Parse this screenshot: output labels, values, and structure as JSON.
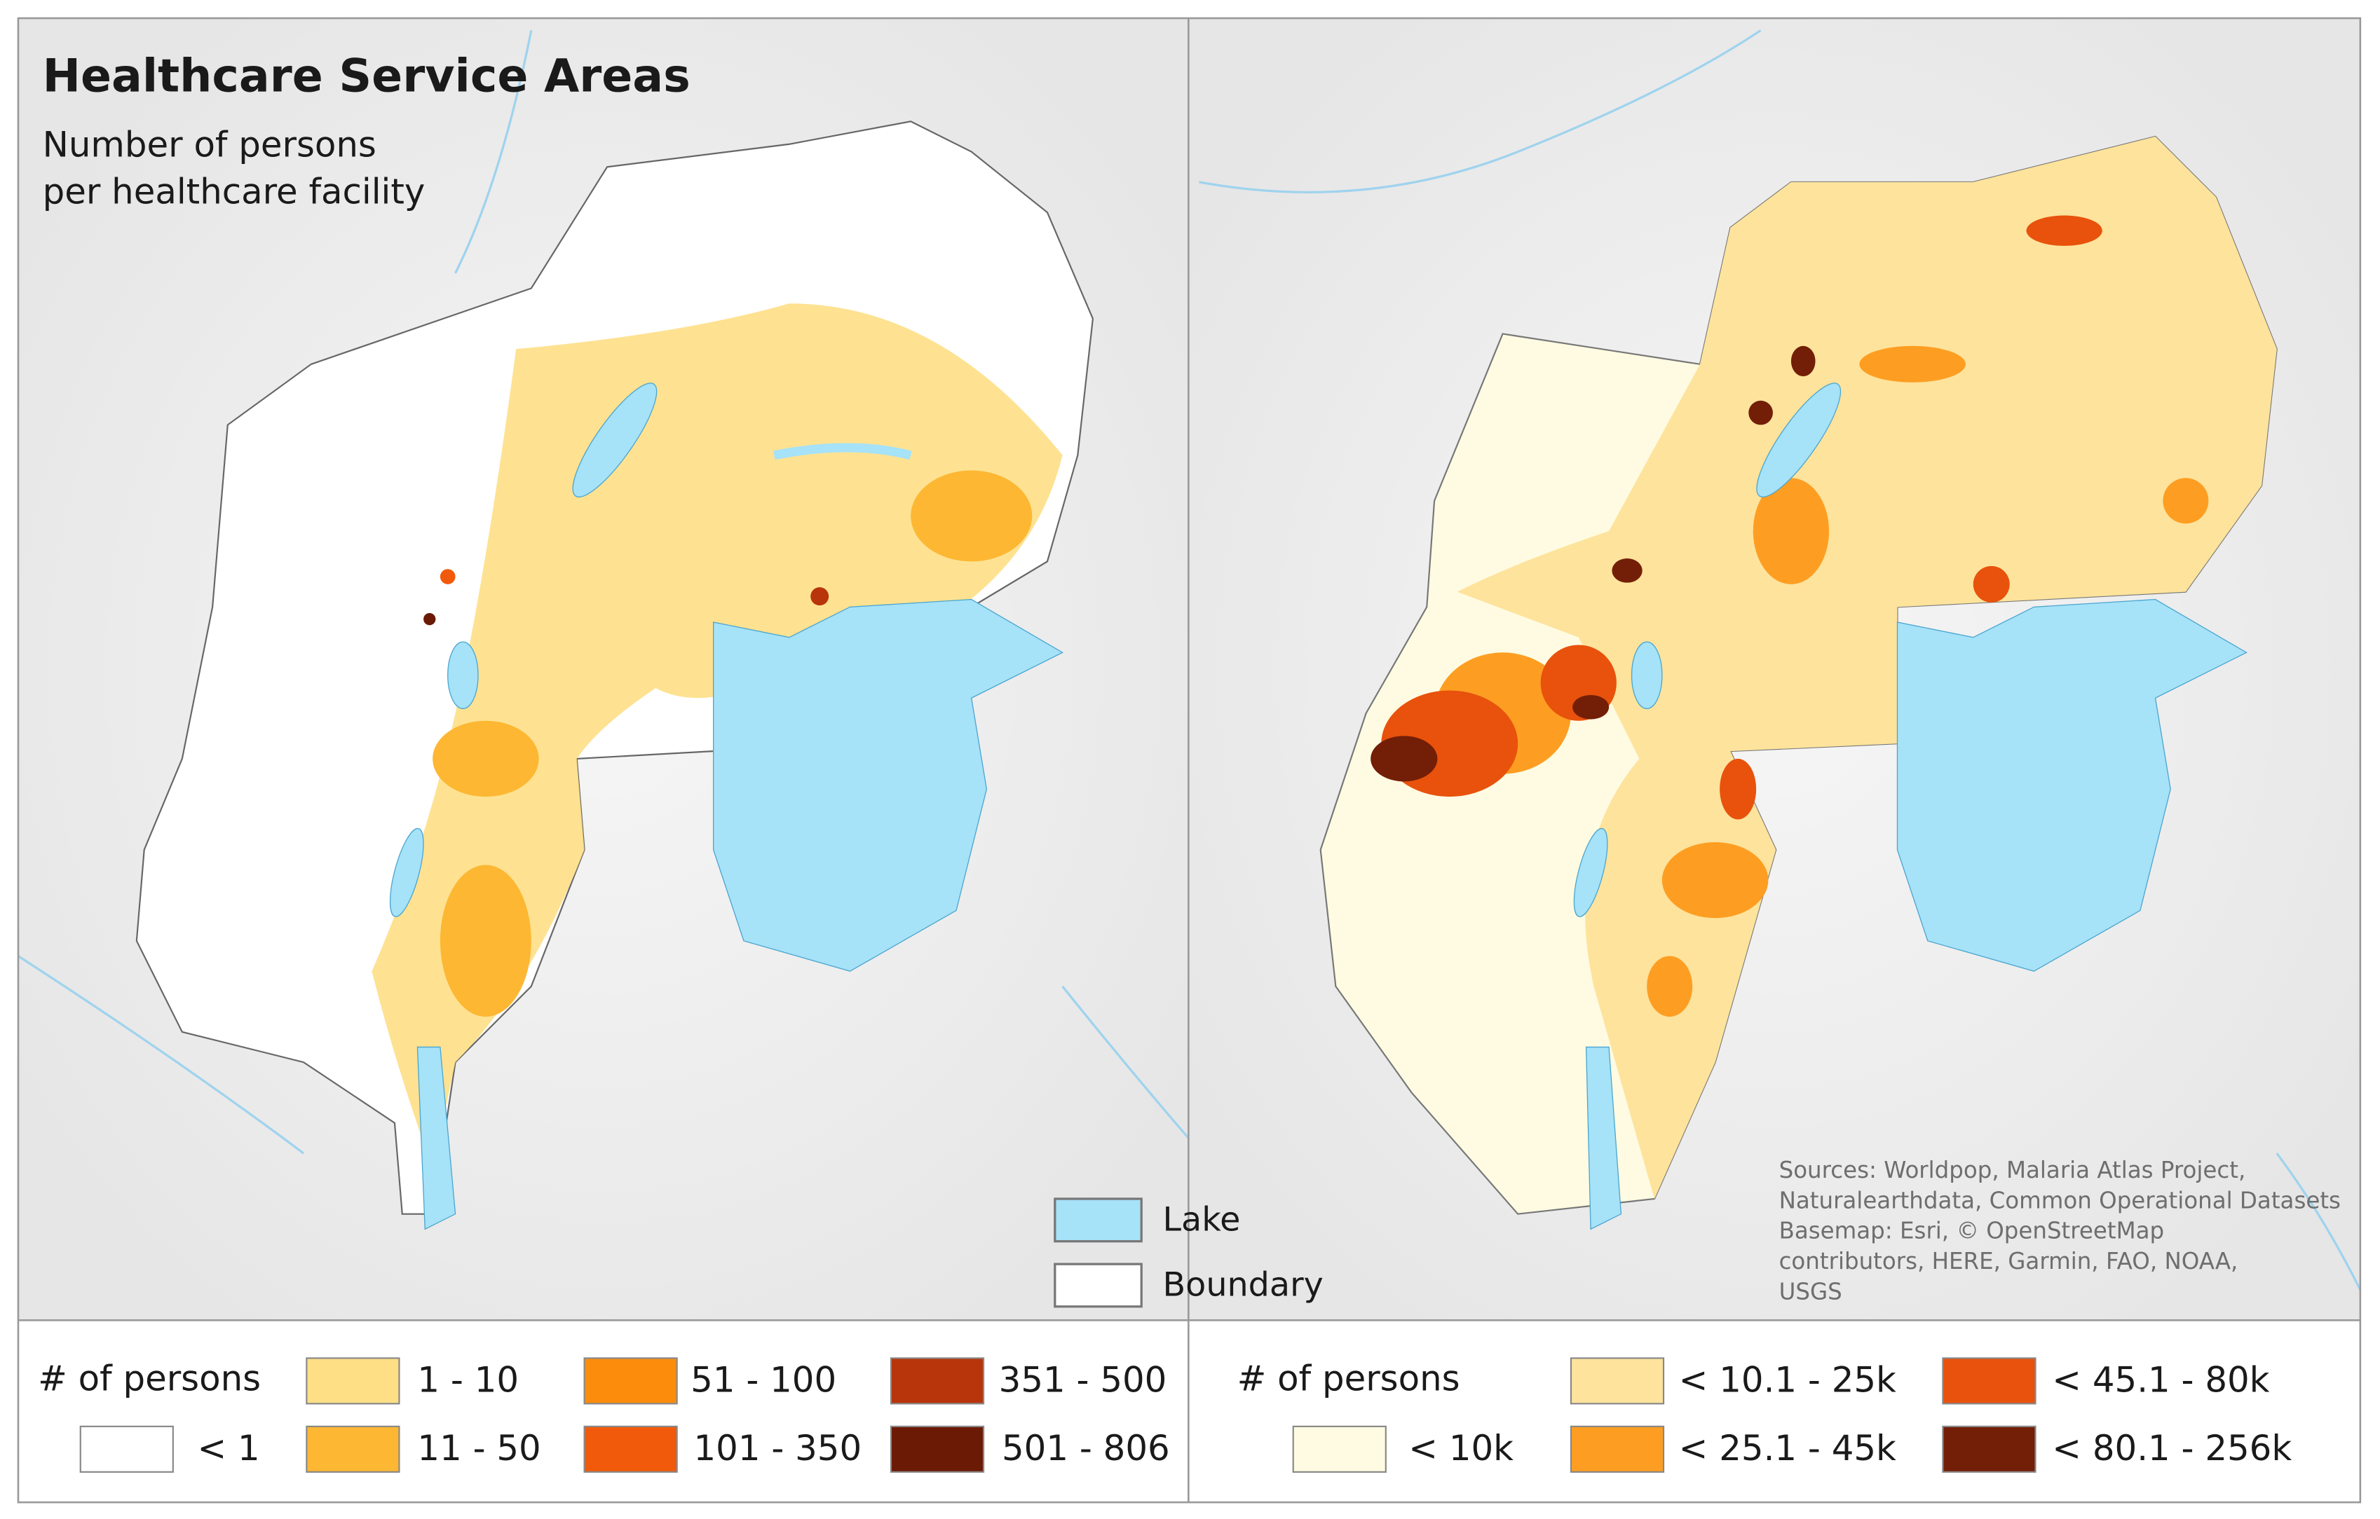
{
  "left_panel": {
    "title": "Healthcare Service Areas",
    "subtitle": [
      "Number of persons",
      "per healthcare facility"
    ],
    "legend": {
      "title": "# of persons",
      "items": [
        {
          "label": "< 1",
          "color": "#ffffff"
        },
        {
          "label": "1 - 10",
          "color": "#fedf86"
        },
        {
          "label": "11 - 50",
          "color": "#fdb733"
        },
        {
          "label": "51 - 100",
          "color": "#fc8c0c"
        },
        {
          "label": "101 - 350",
          "color": "#f05a0a"
        },
        {
          "label": "351 - 500",
          "color": "#b8340a"
        },
        {
          "label": "501 - 806",
          "color": "#6b1a06"
        }
      ]
    }
  },
  "map_legend": [
    {
      "label": "Lake",
      "color": "#a6e2f8"
    },
    {
      "label": "Boundary",
      "color": "#ffffff"
    }
  ],
  "right_panel": {
    "sources": [
      "Sources: Worldpop, Malaria Atlas Project,",
      "Naturalearthdata, Common Operational Datasets",
      "Basemap: Esri, © OpenStreetMap",
      "contributors, HERE, Garmin, FAO, NOAA,",
      "USGS"
    ],
    "legend": {
      "title": "# of persons",
      "items": [
        {
          "label": "< 10k",
          "color": "#fffbe2"
        },
        {
          "label": "< 10.1 - 25k",
          "color": "#fee39c"
        },
        {
          "label": "< 25.1 - 45k",
          "color": "#fd9e22"
        },
        {
          "label": "< 45.1 - 80k",
          "color": "#e8520c"
        },
        {
          "label": "< 80.1 - 256k",
          "color": "#731e07"
        }
      ]
    }
  }
}
